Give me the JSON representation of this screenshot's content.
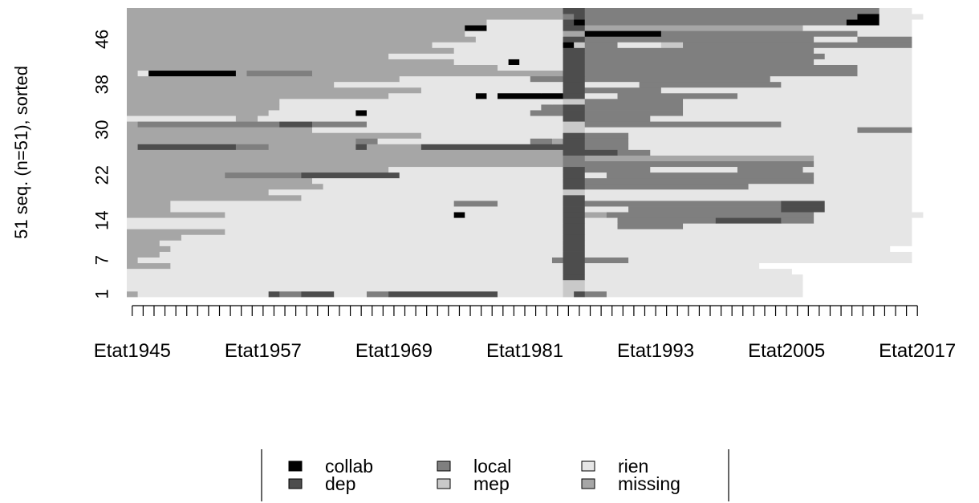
{
  "chart_data": {
    "type": "heatmap",
    "title": "",
    "ylabel": "51 seq. (n=51), sorted",
    "xlabel": "",
    "x_first_year": 1945,
    "x_last_year": 2017,
    "x_tick_labels": [
      "Etat1945",
      "Etat1957",
      "Etat1969",
      "Etat1981",
      "Etat1993",
      "Etat2005",
      "Etat2017"
    ],
    "y_tick_labels": [
      "1",
      "7",
      "14",
      "22",
      "30",
      "38",
      "46"
    ],
    "y_tick_values": [
      1,
      7,
      14,
      22,
      30,
      38,
      46
    ],
    "n_sequences": 51,
    "legend_position": "bottom",
    "states": [
      {
        "code": "C",
        "name": "collab",
        "color": "#000000"
      },
      {
        "code": "D",
        "name": "dep",
        "color": "#4d4d4d"
      },
      {
        "code": "L",
        "name": "local",
        "color": "#7f7f7f"
      },
      {
        "code": "M",
        "name": "mep",
        "color": "#c9c9c9"
      },
      {
        "code": "R",
        "name": "rien",
        "color": "#e6e6e6"
      },
      {
        "code": "X",
        "name": "missing",
        "color": "#a6a6a6"
      }
    ],
    "legend_order": [
      "collab",
      "dep",
      "local",
      "mep",
      "rien",
      "missing"
    ],
    "sequences": [
      "1945:X,1946:R,1958:D,1959:L,1961:D,1964:R,1966:R,1967:L,1969:D,1979:R,1985:M,1986:D,1987:L,1989:R,2007:W",
      "1945:R,1985:M,1987:R,2007:W",
      "1945:R,1985:M,1987:R,2007:W",
      "1945:R,1984:R,1985:D,1987:R,2007:W",
      "1945:R,1985:D,1987:R,2006:W",
      "1945:X,1949:R,1985:D,1987:R,2003:W",
      "1945:X,1946:R,1984:L,1985:D,1987:L,1991:R,2017:W",
      "1945:X,1948:R,1985:D,1987:R,2017:W",
      "1945:X,1949:R,1985:D,1987:R,2015:W",
      "1945:X,1948:R,1985:D,1987:R,2017:W",
      "1945:X,1950:R,1985:D,1987:R,2017:W",
      "1945:X,1954:R,1985:D,1987:R,2017:W",
      "1945:R,1985:D,1987:R,1990:L,1996:R,2017:W",
      "1945:R,1985:D,1987:R,1990:L,1999:D,2005:L,2008:R,2017:W",
      "1945:X,1954:R,1975:C,1976:R,1985:D,1987:X,1989:L,2008:R",
      "1945:X,1949:R,1985:D,1987:R,1991:L,2005:D,2009:R,2017:W",
      "1945:X,1949:R,1975:L,1979:R,1985:D,1987:L,1991:L,2005:D,2009:R,2017:W",
      "1945:X,1961:R,1985:D,1987:R,2017:W",
      "1945:X,1958:R,1983:R,1985:M,1987:R,2017:W",
      "1945:X,1963:R,1985:D,1987:L,2002:R,2017:W",
      "1945:X,1962:R,1983:R,1985:D,1987:L,2008:R,2017:W",
      "1945:X,1954:L,1961:D,1970:R,1984:R,1985:D,1987:R,1989:L,2008:R,2017:W",
      "1945:X,1969:R,1984:R,1985:D,1987:L,1993:R,2001:L,2007:R,2017:W",
      "1945:X,1985:L,1987:L,2008:R,2017:W",
      "1945:X,1985:L,1987:X,2008:R,2017:W",
      "1945:X,1984:X,1985:D,1990:L,1993:R,2017:W",
      "1945:X,1946:D,1955:L,1958:X,1966:D,1967:X,1972:D,1985:D,1987:L,1991:R,2017:W",
      "1945:X,1966:L,1968:R,1982:L,1984:X,1985:D,1987:L,1991:R,2017:W",
      "1945:X,1972:R,1984:R,1985:D,1987:L,1991:R,2017:W",
      "1945:X,1962:R,1985:M,1987:R,2012:L,2017:W",
      "1945:X,1946:L,1959:D,1962:L,1967:R,1983:R,1985:M,1987:L,2005:R,2017:W",
      "1945:R,1955:X,1957:R,1985:D,1987:L,1993:R,2017:W",
      "1945:X,1958:R,1966:C,1967:R,1982:L,1985:D,1987:L,1996:R,2017:W",
      "1945:X,1959:R,1983:L,1985:D,1987:L,1996:R,2017:W",
      "1945:X,1959:R,1984:R,1985:M,1987:L,1996:R,2017:W",
      "1945:X,1969:R,1977:C,1978:R,1979:C,1985:D,1987:R,1990:L,2001:R,2017:W",
      "1945:X,1972:R,1983:R,1985:D,1987:L,1994:R,2017:W",
      "1945:X,1964:R,1977:R,1985:D,1987:R,1992:L,2005:R,2017:W",
      "1945:X,1970:R,1982:L,1985:D,1987:L,2004:R,2017:W",
      "1945:X,1946:R,1947:C,1955:X,1956:L,1962:X,1985:D,1987:L,2012:R,2017:W",
      "1945:X,1979:R,1985:D,1987:L,2007:L,2012:R,2017:W",
      "1945:X,1975:R,1980:C,1981:R,1985:D,1987:L,2008:R,2017:W",
      "1945:X,1969:R,1985:D,1987:L,2009:R,2017:W",
      "1945:X,1975:R,1985:D,1987:L,2008:R,2017:W",
      "1945:X,1973:R,1985:C,1986:M,1987:L,1990:R,1994:M,1996:L,2017:W",
      "1945:X,1977:R,1985:D,1987:L,2008:R,2012:L,2017:W",
      "1945:X,1976:R,1985:X,1987:C,1994:L,2007:L,2012:R,2017:W",
      "1945:X,1976:C,1978:R,1985:D,1987:X,2007:R,2009:R,2017:W",
      "1945:X,1978:R,1985:D,1986:C,1987:L,2011:C,2014:R,2017:W",
      "1945:X,1985:L,1986:D,1987:L,2012:C,2013:C,2014:R",
      "1945:X,1985:D,1987:L,2014:R,2017:W"
    ]
  }
}
